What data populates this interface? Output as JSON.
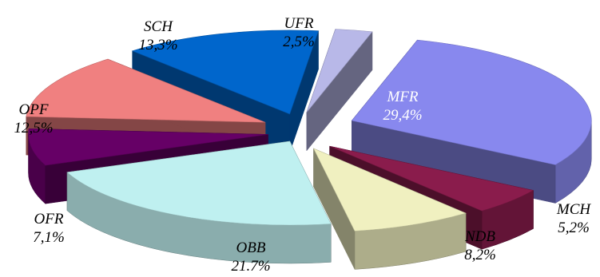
{
  "chart_data": {
    "type": "pie",
    "style": "3d-exploded",
    "title": "",
    "slices": [
      {
        "name": "UFR",
        "label": "UFR",
        "value_label": "2,5%",
        "value": 2.5,
        "color": "#b8b8e8",
        "label_color": "#000000"
      },
      {
        "name": "MFR",
        "label": "MFR",
        "value_label": "29,4%",
        "value": 29.4,
        "color": "#8888ee",
        "label_color": "#ffffff"
      },
      {
        "name": "MCH",
        "label": "MCH",
        "value_label": "5,2%",
        "value": 5.2,
        "color": "#8a1c4c",
        "label_color": "#000000"
      },
      {
        "name": "NDB",
        "label": "NDB",
        "value_label": "8,2%",
        "value": 8.2,
        "color": "#f0f0c0",
        "label_color": "#000000"
      },
      {
        "name": "OBB",
        "label": "OBB",
        "value_label": "21.7%",
        "value": 21.7,
        "color": "#bff0f0",
        "label_color": "#000000"
      },
      {
        "name": "OFR",
        "label": "OFR",
        "value_label": "7,1%",
        "value": 7.1,
        "color": "#660066",
        "label_color": "#000000"
      },
      {
        "name": "OPF",
        "label": "OPF",
        "value_label": "12,5%",
        "value": 12.5,
        "color": "#f08080",
        "label_color": "#000000"
      },
      {
        "name": "SCH",
        "label": "SCH",
        "value_label": "13,3%",
        "value": 13.3,
        "color": "#0066cc",
        "label_color": "#000000"
      }
    ]
  }
}
